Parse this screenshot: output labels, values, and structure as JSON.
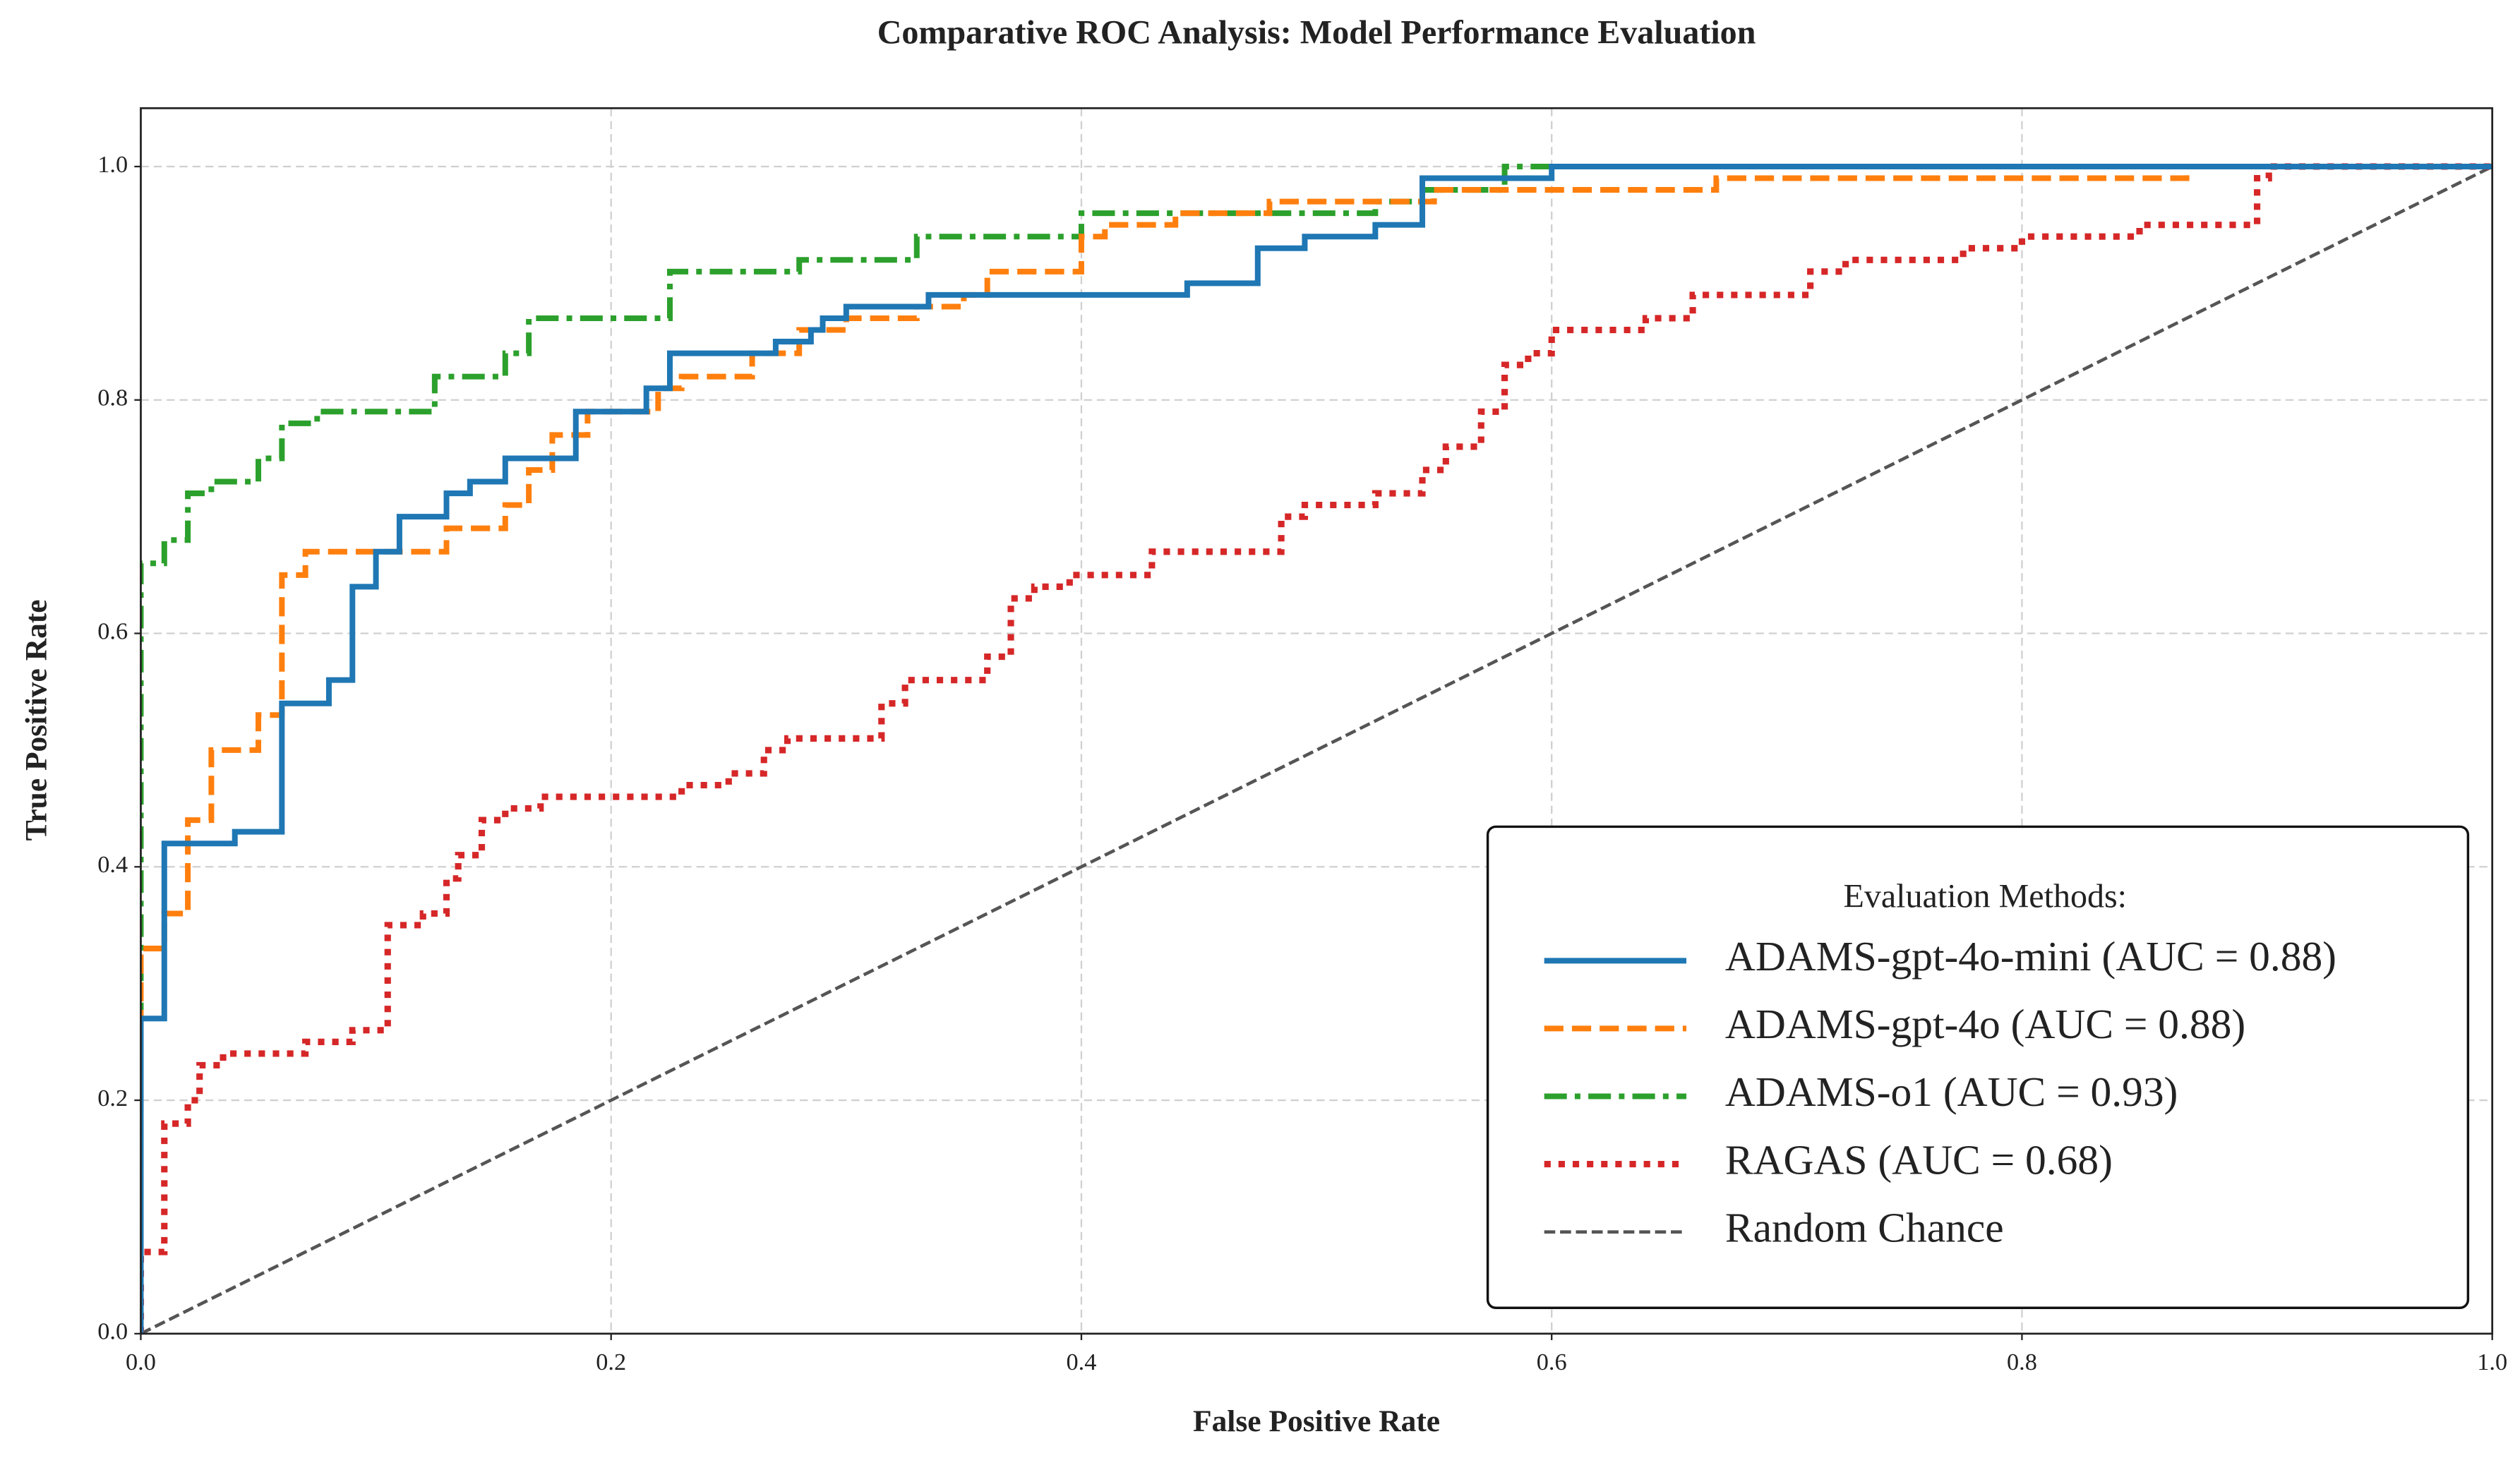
{
  "chart_data": {
    "type": "line",
    "title": "Comparative ROC Analysis: Model Performance Evaluation",
    "x_label": "False Positive Rate",
    "y_label": "True Positive Rate",
    "xlim": [
      0,
      1
    ],
    "ylim": [
      0,
      1.05
    ],
    "xticks": [
      {
        "value": 0,
        "label": "0.0"
      },
      0.2,
      0.4,
      0.6,
      0.8,
      {
        "value": 1,
        "label": "1.0"
      }
    ],
    "yticks": [
      {
        "value": 0,
        "label": "0.0"
      },
      0.2,
      0.4,
      0.6,
      0.8,
      {
        "value": 1,
        "label": "1.0"
      }
    ],
    "grid": true,
    "legend": "lower right",
    "legend_title": "Evaluation Methods:",
    "series": [
      {
        "name": "ADAMS-gpt-4o-mini (AUC = 0.88)",
        "color": "#1f77b4",
        "linestyle": "solid",
        "linewidth": 3.5,
        "x": [
          0,
          0,
          0.01,
          0.01,
          0.04,
          0.04,
          0.06,
          0.06,
          0.08,
          0.08,
          0.09,
          0.09,
          0.1,
          0.1,
          0.11,
          0.11,
          0.13,
          0.13,
          0.14,
          0.14,
          0.155,
          0.155,
          0.185,
          0.185,
          0.215,
          0.215,
          0.225,
          0.225,
          0.27,
          0.27,
          0.285,
          0.285,
          0.29,
          0.29,
          0.3,
          0.3,
          0.335,
          0.335,
          0.445,
          0.445,
          0.475,
          0.475,
          0.495,
          0.495,
          0.525,
          0.525,
          0.545,
          0.545,
          0.6,
          0.6,
          1
        ],
        "values": [
          0,
          0.27,
          0.27,
          0.42,
          0.42,
          0.43,
          0.43,
          0.54,
          0.54,
          0.56,
          0.56,
          0.64,
          0.64,
          0.67,
          0.67,
          0.7,
          0.7,
          0.72,
          0.72,
          0.73,
          0.73,
          0.75,
          0.75,
          0.79,
          0.79,
          0.81,
          0.81,
          0.84,
          0.84,
          0.85,
          0.85,
          0.86,
          0.86,
          0.87,
          0.87,
          0.88,
          0.88,
          0.89,
          0.89,
          0.9,
          0.9,
          0.93,
          0.93,
          0.94,
          0.94,
          0.95,
          0.95,
          0.99,
          0.99,
          1,
          1
        ]
      },
      {
        "name": "ADAMS-gpt-4o (AUC = 0.88)",
        "color": "#ff7f0e",
        "linestyle": "dashed",
        "linewidth": 3.5,
        "x": [
          0,
          0,
          0.01,
          0.01,
          0.02,
          0.02,
          0.03,
          0.03,
          0.05,
          0.05,
          0.06,
          0.06,
          0.07,
          0.07,
          0.13,
          0.13,
          0.155,
          0.155,
          0.165,
          0.165,
          0.175,
          0.175,
          0.19,
          0.19,
          0.22,
          0.22,
          0.23,
          0.23,
          0.26,
          0.26,
          0.28,
          0.28,
          0.3,
          0.3,
          0.33,
          0.33,
          0.35,
          0.35,
          0.36,
          0.36,
          0.4,
          0.4,
          0.41,
          0.41,
          0.44,
          0.44,
          0.48,
          0.48,
          0.55,
          0.55,
          0.67,
          0.67,
          0.87,
          0.87,
          1
        ],
        "values": [
          0,
          0.33,
          0.33,
          0.36,
          0.36,
          0.44,
          0.44,
          0.5,
          0.5,
          0.53,
          0.53,
          0.65,
          0.65,
          0.67,
          0.67,
          0.69,
          0.69,
          0.71,
          0.71,
          0.74,
          0.74,
          0.77,
          0.77,
          0.79,
          0.79,
          0.81,
          0.81,
          0.82,
          0.82,
          0.84,
          0.84,
          0.86,
          0.86,
          0.87,
          0.87,
          0.88,
          0.88,
          0.89,
          0.89,
          0.91,
          0.91,
          0.94,
          0.94,
          0.95,
          0.95,
          0.96,
          0.96,
          0.97,
          0.97,
          0.98,
          0.98,
          0.99,
          0.99,
          1,
          1
        ]
      },
      {
        "name": "ADAMS-o1 (AUC = 0.93)",
        "color": "#2ca02c",
        "linestyle": "dashdot",
        "linewidth": 3.5,
        "x": [
          0,
          0,
          0.01,
          0.01,
          0.02,
          0.02,
          0.03,
          0.03,
          0.05,
          0.05,
          0.06,
          0.06,
          0.075,
          0.075,
          0.125,
          0.125,
          0.155,
          0.155,
          0.165,
          0.165,
          0.225,
          0.225,
          0.28,
          0.28,
          0.33,
          0.33,
          0.4,
          0.4,
          0.525,
          0.525,
          0.545,
          0.545,
          0.58,
          0.58,
          1
        ],
        "values": [
          0,
          0.66,
          0.66,
          0.68,
          0.68,
          0.72,
          0.72,
          0.73,
          0.73,
          0.75,
          0.75,
          0.78,
          0.78,
          0.79,
          0.79,
          0.82,
          0.82,
          0.84,
          0.84,
          0.87,
          0.87,
          0.91,
          0.91,
          0.92,
          0.92,
          0.94,
          0.94,
          0.96,
          0.96,
          0.97,
          0.97,
          0.98,
          0.98,
          1,
          1
        ]
      },
      {
        "name": "RAGAS (AUC = 0.68)",
        "color": "#d62728",
        "linestyle": "dotted",
        "linewidth": 4,
        "x": [
          0,
          0,
          0.01,
          0.01,
          0.02,
          0.02,
          0.025,
          0.025,
          0.035,
          0.035,
          0.07,
          0.07,
          0.09,
          0.09,
          0.105,
          0.105,
          0.12,
          0.12,
          0.13,
          0.13,
          0.135,
          0.135,
          0.145,
          0.145,
          0.155,
          0.155,
          0.17,
          0.17,
          0.23,
          0.23,
          0.25,
          0.25,
          0.265,
          0.265,
          0.275,
          0.275,
          0.315,
          0.315,
          0.325,
          0.325,
          0.36,
          0.36,
          0.37,
          0.37,
          0.38,
          0.38,
          0.395,
          0.395,
          0.43,
          0.43,
          0.485,
          0.485,
          0.495,
          0.495,
          0.525,
          0.525,
          0.545,
          0.545,
          0.555,
          0.555,
          0.57,
          0.57,
          0.58,
          0.58,
          0.59,
          0.59,
          0.6,
          0.6,
          0.64,
          0.64,
          0.66,
          0.66,
          0.71,
          0.71,
          0.725,
          0.725,
          0.775,
          0.775,
          0.8,
          0.8,
          0.85,
          0.85,
          0.9,
          0.9,
          0.905,
          0.905,
          1
        ],
        "values": [
          0,
          0.07,
          0.07,
          0.18,
          0.18,
          0.2,
          0.2,
          0.23,
          0.23,
          0.24,
          0.24,
          0.25,
          0.25,
          0.26,
          0.26,
          0.35,
          0.35,
          0.36,
          0.36,
          0.39,
          0.39,
          0.41,
          0.41,
          0.44,
          0.44,
          0.45,
          0.45,
          0.46,
          0.46,
          0.47,
          0.47,
          0.48,
          0.48,
          0.5,
          0.5,
          0.51,
          0.51,
          0.54,
          0.54,
          0.56,
          0.56,
          0.58,
          0.58,
          0.63,
          0.63,
          0.64,
          0.64,
          0.65,
          0.65,
          0.67,
          0.67,
          0.7,
          0.7,
          0.71,
          0.71,
          0.72,
          0.72,
          0.74,
          0.74,
          0.76,
          0.76,
          0.79,
          0.79,
          0.83,
          0.83,
          0.84,
          0.84,
          0.86,
          0.86,
          0.87,
          0.87,
          0.89,
          0.89,
          0.91,
          0.91,
          0.92,
          0.92,
          0.93,
          0.93,
          0.94,
          0.94,
          0.95,
          0.95,
          0.99,
          0.99,
          1,
          1
        ]
      },
      {
        "name": "Random Chance",
        "color": "#555555",
        "linestyle": "dashed",
        "linewidth": 2,
        "x": [
          0,
          1
        ],
        "values": [
          0,
          1
        ]
      }
    ]
  }
}
